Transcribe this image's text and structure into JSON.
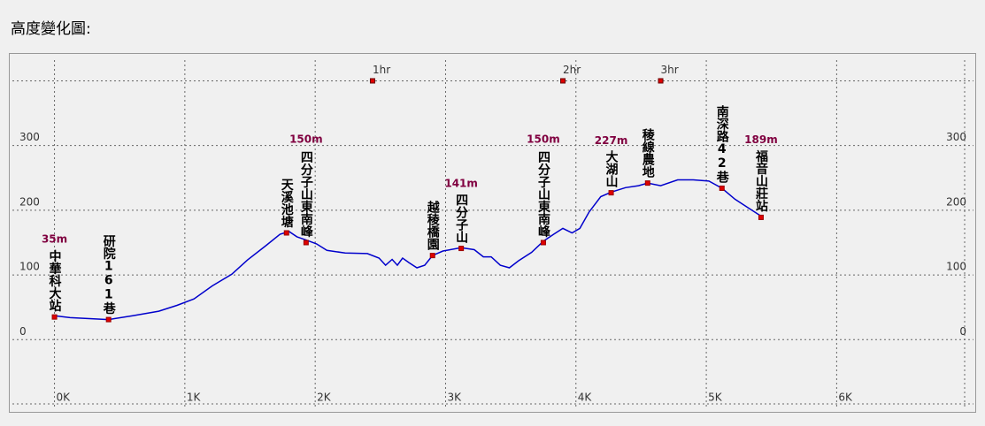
{
  "chart_data": {
    "type": "elevation-profile",
    "title": "高度變化圖:",
    "xlim": [
      -0.35,
      7.07
    ],
    "ylim": [
      -113,
      443
    ],
    "xticks": [
      {
        "value": 0,
        "label": "0K"
      },
      {
        "value": 1,
        "label": "1K"
      },
      {
        "value": 2,
        "label": "2K"
      },
      {
        "value": 3,
        "label": "3K"
      },
      {
        "value": 4,
        "label": "4K"
      },
      {
        "value": 5,
        "label": "5K"
      },
      {
        "value": 6,
        "label": "6K"
      }
    ],
    "yticks": [
      0,
      100,
      200,
      300
    ],
    "grid": true,
    "color": "#0000cc",
    "marker_color": "#e00000",
    "label_color": "#800040",
    "profile": {
      "x": [
        0,
        0.12,
        0.415,
        0.6,
        0.8,
        0.94,
        1.07,
        1.21,
        1.36,
        1.48,
        1.62,
        1.73,
        1.8,
        1.86,
        1.93,
        2.01,
        2.09,
        2.23,
        2.4,
        2.49,
        2.54,
        2.59,
        2.63,
        2.67,
        2.72,
        2.78,
        2.84,
        2.9,
        2.98,
        3.12,
        3.22,
        3.29,
        3.35,
        3.42,
        3.49,
        3.56,
        3.66,
        3.75,
        3.83,
        3.9,
        3.97,
        4.03,
        4.1,
        4.19,
        4.27,
        4.38,
        4.48,
        4.55,
        4.65,
        4.78,
        4.9,
        5.02,
        5.12,
        5.22,
        5.32,
        5.42
      ],
      "elevation": [
        37,
        34,
        31,
        37,
        44,
        53,
        63,
        83,
        101,
        123,
        145,
        163,
        167,
        159,
        154,
        148,
        138,
        134,
        133,
        126,
        115,
        124,
        115,
        126,
        119,
        111,
        115,
        130,
        137,
        142,
        139,
        128,
        128,
        115,
        111,
        122,
        135,
        152,
        163,
        172,
        165,
        172,
        197,
        221,
        228,
        235,
        238,
        242,
        238,
        247,
        247,
        245,
        234,
        217,
        204,
        191
      ]
    },
    "waypoints": {
      "names": [
        "中華科大站",
        "研院161巷",
        "天溪池塘",
        "四分子山東南峰",
        "越稜橋園",
        "四分子山",
        "四分子山東南峰",
        "大湖山",
        "稜線農地",
        "南深路42巷",
        "福音山莊站"
      ],
      "x": [
        0,
        0.415,
        1.78,
        1.93,
        2.9,
        3.12,
        3.75,
        4.27,
        4.55,
        5.12,
        5.42
      ],
      "elevations": [
        35,
        31,
        165,
        150,
        130,
        141,
        150,
        227,
        242,
        234,
        189
      ],
      "elevation_labels": [
        "35m",
        null,
        null,
        "150m",
        null,
        "141m",
        "150m",
        "227m",
        null,
        null,
        "189m"
      ]
    },
    "time_markers": {
      "x": [
        2.44,
        3.9,
        4.65
      ],
      "labels": [
        "1hr",
        "2hr",
        "3hr"
      ],
      "elevation": 400
    }
  }
}
